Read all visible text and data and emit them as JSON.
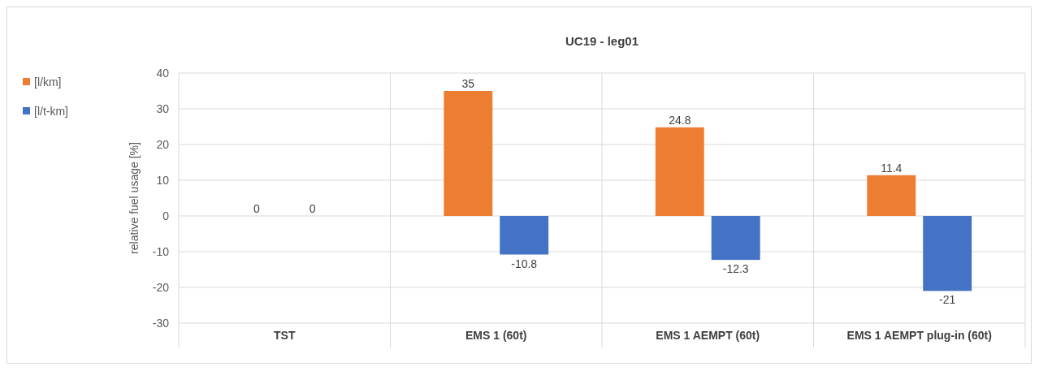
{
  "chart_data": {
    "type": "bar",
    "title": "UC19 - leg01",
    "ylabel": "relative fuel usage [%]",
    "categories": [
      "TST",
      "EMS 1 (60t)",
      "EMS 1 AEMPT (60t)",
      "EMS 1 AEMPT plug-in (60t)"
    ],
    "series": [
      {
        "name": "[l/km]",
        "color": "#ed7d31",
        "values": [
          0,
          35,
          24.8,
          11.4
        ]
      },
      {
        "name": "[l/t-km]",
        "color": "#4472c4",
        "values": [
          0,
          -10.8,
          -12.3,
          -21
        ]
      }
    ],
    "ylim": [
      -30,
      40
    ],
    "yticks": [
      -30,
      -20,
      -10,
      0,
      10,
      20,
      30,
      40
    ],
    "grid": true,
    "legend": "left",
    "data_labels": true
  }
}
